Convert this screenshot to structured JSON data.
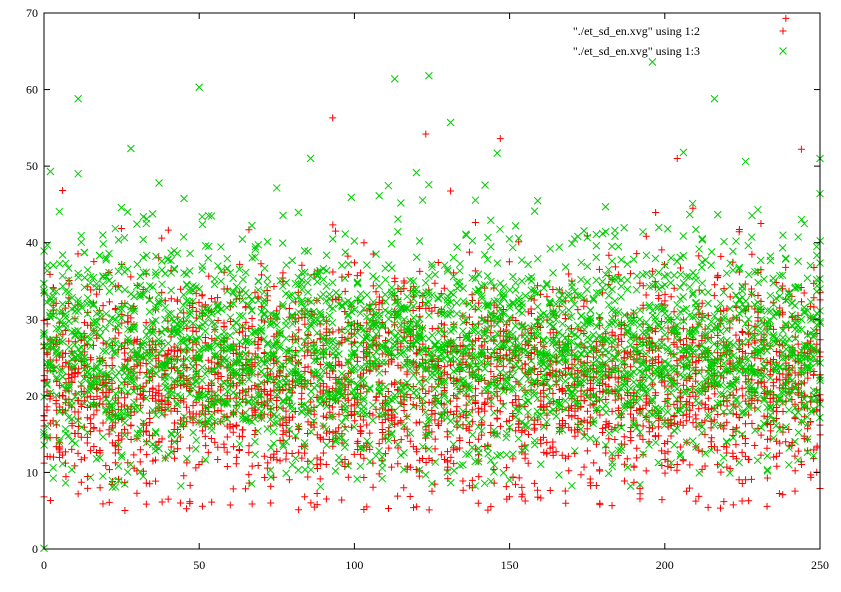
{
  "chart_data": {
    "type": "scatter",
    "title": "",
    "xlabel": "",
    "ylabel": "",
    "xlim": [
      0,
      250
    ],
    "ylim": [
      0,
      70
    ],
    "xticks": [
      0,
      50,
      100,
      150,
      200,
      250
    ],
    "yticks": [
      0,
      10,
      20,
      30,
      40,
      50,
      60,
      70
    ],
    "grid": false,
    "legend_position": "top-right",
    "series": [
      {
        "name": "\"./et_sd_en.xvg\" using 1:2",
        "marker": "plus",
        "color": "#ff0000",
        "points_per_x": 12,
        "distribution": {
          "mean": 22,
          "std": 7,
          "min": 5,
          "max": 58
        },
        "highlights": [
          [
            0,
            6.8
          ],
          [
            11,
            7.2
          ],
          [
            19,
            5.9
          ],
          [
            88,
            5.8
          ],
          [
            104,
            5.5
          ],
          [
            93,
            56.3
          ],
          [
            123,
            54.2
          ],
          [
            147,
            53.6
          ],
          [
            204,
            51.0
          ],
          [
            227,
            6.3
          ],
          [
            238,
            7.1
          ],
          [
            239,
            69.3
          ],
          [
            244,
            52.2
          ],
          [
            250,
            7.9
          ]
        ]
      },
      {
        "name": "\"./et_sd_en.xvg\" using 1:3",
        "marker": "cross",
        "color": "#00cc00",
        "points_per_x": 12,
        "distribution": {
          "mean": 26,
          "std": 7.5,
          "min": 8,
          "max": 64
        },
        "highlights": [
          [
            0,
            0.1
          ],
          [
            11,
            58.8
          ],
          [
            11,
            49.0
          ],
          [
            28,
            52.3
          ],
          [
            50,
            60.3
          ],
          [
            113,
            61.4
          ],
          [
            124,
            61.8
          ],
          [
            131,
            55.7
          ],
          [
            146,
            51.7
          ],
          [
            196,
            63.6
          ],
          [
            206,
            51.8
          ],
          [
            216,
            58.8
          ],
          [
            226,
            50.6
          ],
          [
            250,
            51.0
          ],
          [
            250,
            46.4
          ]
        ]
      }
    ]
  }
}
